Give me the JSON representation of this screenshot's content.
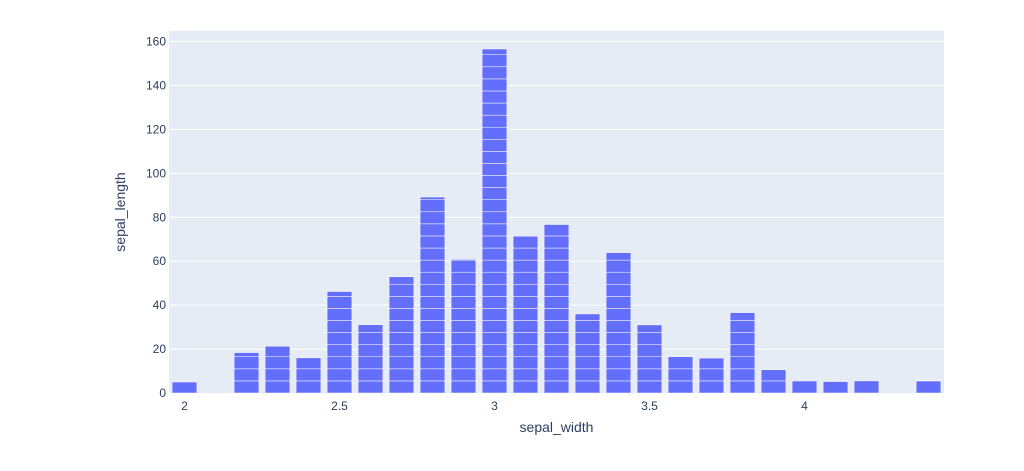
{
  "chart_data": {
    "type": "bar",
    "title": "",
    "xlabel": "sepal_width",
    "ylabel": "sepal_length",
    "x": [
      2.0,
      2.2,
      2.3,
      2.4,
      2.5,
      2.6,
      2.7,
      2.8,
      2.9,
      3.0,
      3.1,
      3.2,
      3.3,
      3.4,
      3.5,
      3.6,
      3.7,
      3.8,
      3.9,
      4.0,
      4.1,
      4.2,
      4.4
    ],
    "values": [
      5.0,
      18.4,
      21.3,
      16.0,
      46.2,
      31.1,
      52.9,
      89.2,
      60.9,
      156.6,
      71.4,
      76.7,
      36.0,
      63.9,
      31.0,
      16.8,
      15.9,
      36.6,
      10.6,
      5.8,
      5.2,
      5.5,
      5.7
    ],
    "segment_value": 5.5,
    "x_ticks": [
      {
        "value": 2,
        "label": "2"
      },
      {
        "value": 2.5,
        "label": "2.5"
      },
      {
        "value": 3,
        "label": "3"
      },
      {
        "value": 3.5,
        "label": "3.5"
      },
      {
        "value": 4,
        "label": "4"
      }
    ],
    "y_ticks": [
      {
        "value": 0,
        "label": "0"
      },
      {
        "value": 20,
        "label": "20"
      },
      {
        "value": 40,
        "label": "40"
      },
      {
        "value": 60,
        "label": "60"
      },
      {
        "value": 80,
        "label": "80"
      },
      {
        "value": 100,
        "label": "100"
      },
      {
        "value": 120,
        "label": "120"
      },
      {
        "value": 140,
        "label": "140"
      },
      {
        "value": 160,
        "label": "160"
      }
    ],
    "xlim": [
      1.95,
      4.45
    ],
    "ylim": [
      0,
      164.8
    ],
    "grid": true,
    "legend": "none",
    "colors": {
      "bar": "#636efa",
      "plot_bg": "#e5ecf6",
      "grid": "#ffffff",
      "text": "#2a3f5f"
    }
  }
}
